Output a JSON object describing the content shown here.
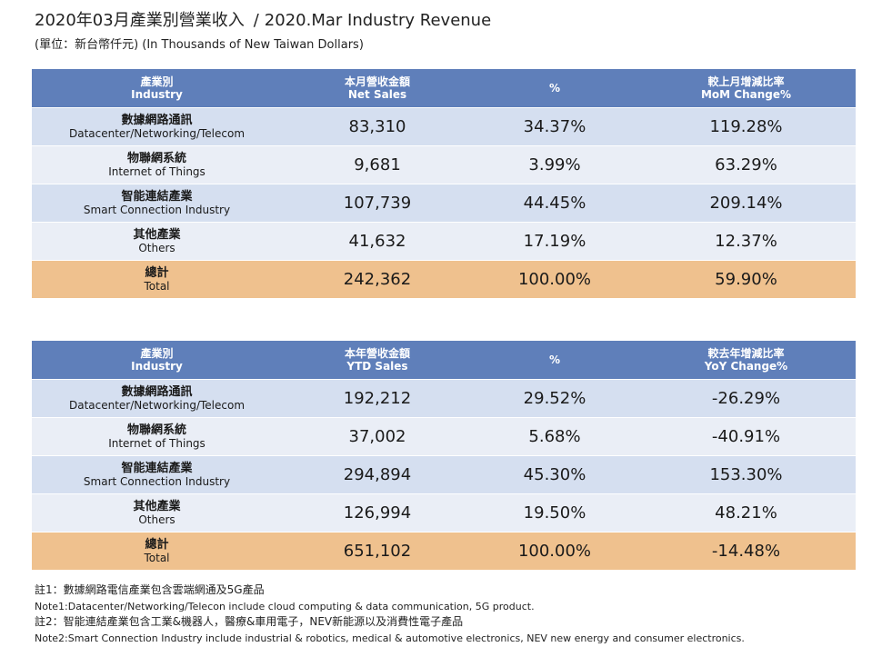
{
  "header": {
    "title_zh": "2020年03月產業別營業收入",
    "title_sep": "/",
    "title_en": "2020.Mar Industry Revenue",
    "unit": "(單位：新台幣仟元) (In Thousands of New Taiwan Dollars)"
  },
  "monthly": {
    "headers": [
      {
        "zh": "產業別",
        "en": "Industry"
      },
      {
        "zh": "本月營收金額",
        "en": "Net Sales"
      },
      {
        "zh": "%",
        "en": ""
      },
      {
        "zh": "較上月增減比率",
        "en": "MoM Change%"
      }
    ],
    "rows": [
      {
        "zh": "數據網路通訊",
        "en": "Datacenter/Networking/Telecom",
        "sales": "83,310",
        "pct": "34.37%",
        "change": "119.28%"
      },
      {
        "zh": "物聯網系統",
        "en": "Internet of Things",
        "sales": "9,681",
        "pct": "3.99%",
        "change": "63.29%"
      },
      {
        "zh": "智能連結產業",
        "en": "Smart Connection Industry",
        "sales": "107,739",
        "pct": "44.45%",
        "change": "209.14%"
      },
      {
        "zh": "其他產業",
        "en": "Others",
        "sales": "41,632",
        "pct": "17.19%",
        "change": "12.37%"
      },
      {
        "zh": "總計",
        "en": "Total",
        "sales": "242,362",
        "pct": "100.00%",
        "change": "59.90%"
      }
    ]
  },
  "ytd": {
    "headers": [
      {
        "zh": "產業別",
        "en": "Industry"
      },
      {
        "zh": "本年營收金額",
        "en": "YTD Sales"
      },
      {
        "zh": "%",
        "en": ""
      },
      {
        "zh": "較去年增減比率",
        "en": "YoY Change%"
      }
    ],
    "rows": [
      {
        "zh": "數據網路通訊",
        "en": "Datacenter/Networking/Telecom",
        "sales": "192,212",
        "pct": "29.52%",
        "change": "-26.29%"
      },
      {
        "zh": "物聯網系統",
        "en": "Internet of Things",
        "sales": "37,002",
        "pct": "5.68%",
        "change": "-40.91%"
      },
      {
        "zh": "智能連結產業",
        "en": "Smart Connection Industry",
        "sales": "294,894",
        "pct": "45.30%",
        "change": "153.30%"
      },
      {
        "zh": "其他產業",
        "en": "Others",
        "sales": "126,994",
        "pct": "19.50%",
        "change": "48.21%"
      },
      {
        "zh": "總計",
        "en": "Total",
        "sales": "651,102",
        "pct": "100.00%",
        "change": "-14.48%"
      }
    ]
  },
  "notes": {
    "note1_zh": "註1：數據網路電信產業包含雲端網通及5G產品",
    "note1_en": "Note1:Datacenter/Networking/Telecon include cloud computing & data communication, 5G product.",
    "note2_zh": "註2：智能連結產業包含工業&機器人，醫療&車用電子，NEV新能源以及消費性電子產品",
    "note2_en": "Note2:Smart Connection Industry include industrial & robotics, medical & automotive electronics, NEV new energy and consumer electronics."
  }
}
